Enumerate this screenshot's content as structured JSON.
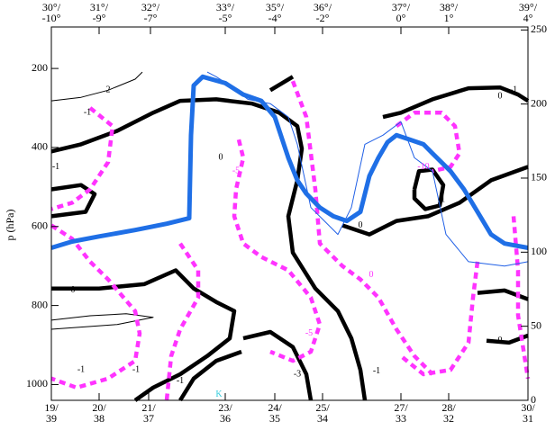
{
  "chart_data": {
    "type": "line",
    "ylabel": "p (hPa)",
    "xlim": [
      0,
      529
    ],
    "ylim": [
      1040,
      95
    ],
    "y2lim": [
      0,
      252
    ],
    "yticks": [
      200,
      400,
      600,
      800,
      1000
    ],
    "y2ticks": [
      0,
      50,
      100,
      150,
      200,
      250
    ],
    "xticks": [
      {
        "value": 0,
        "label": [
          "19/",
          "39"
        ]
      },
      {
        "value": 53,
        "label": [
          "20/",
          "38"
        ]
      },
      {
        "value": 108,
        "label": [
          "21/",
          "37"
        ]
      },
      {
        "value": 193,
        "label": [
          "23/",
          "36"
        ]
      },
      {
        "value": 248,
        "label": [
          "24/",
          "35"
        ]
      },
      {
        "value": 301,
        "label": [
          "25/",
          "34"
        ]
      },
      {
        "value": 388,
        "label": [
          "27/",
          "33"
        ]
      },
      {
        "value": 441,
        "label": [
          "28/",
          "32"
        ]
      },
      {
        "value": 529,
        "label": [
          "30/",
          "31"
        ]
      }
    ],
    "x2ticks": [
      {
        "value": 0,
        "label": [
          "30°/",
          "-10°"
        ]
      },
      {
        "value": 53,
        "label": [
          "31°/",
          "-9°"
        ]
      },
      {
        "value": 110,
        "label": [
          "32°/",
          "-7°"
        ]
      },
      {
        "value": 193,
        "label": [
          "33°/",
          "-5°"
        ]
      },
      {
        "value": 248,
        "label": [
          "35°/",
          "-4°"
        ]
      },
      {
        "value": 301,
        "label": [
          "36°/",
          "-2°"
        ]
      },
      {
        "value": 388,
        "label": [
          "37°/",
          "0°"
        ]
      },
      {
        "value": 441,
        "label": [
          "38°/",
          "1°"
        ]
      },
      {
        "value": 529,
        "label": [
          "39°/",
          "4°"
        ]
      }
    ],
    "series": [
      {
        "color": "#000000",
        "style": "thick",
        "x": [
          0,
          33,
          73,
          113,
          143,
          183,
          223,
          253,
          273,
          278,
          273,
          263,
          268,
          293,
          318,
          333,
          343,
          348
        ],
        "values": [
          410,
          392,
          358,
          312,
          282,
          278,
          289,
          312,
          346,
          403,
          483,
          574,
          666,
          757,
          814,
          883,
          963,
          1040
        ]
      },
      {
        "color": "#000000",
        "style": "thick",
        "x": [
          0,
          53,
          103,
          138,
          158,
          183,
          203,
          198,
          173,
          143,
          113,
          93
        ],
        "values": [
          757,
          757,
          746,
          711,
          757,
          791,
          814,
          883,
          928,
          974,
          1008,
          1040
        ]
      },
      {
        "color": "#000000",
        "style": "thick",
        "x": [
          368,
          388,
          423,
          463,
          498,
          518,
          529
        ],
        "values": [
          323,
          312,
          278,
          250,
          248,
          266,
          282
        ]
      },
      {
        "color": "#000000",
        "style": "thick",
        "x": [
          403,
          408,
          423,
          435,
          431,
          415,
          403,
          403
        ],
        "values": [
          506,
          460,
          456,
          495,
          547,
          556,
          529,
          506
        ]
      },
      {
        "color": "#000000",
        "style": "thick",
        "x": [
          323,
          353,
          383,
          418,
          453,
          488,
          529
        ],
        "values": [
          597,
          620,
          586,
          574,
          540,
          483,
          449
        ]
      },
      {
        "color": "#000000",
        "style": "thick",
        "x": [
          473,
          503,
          529
        ],
        "values": [
          768,
          762,
          784
        ]
      },
      {
        "color": "#000000",
        "style": "thick",
        "x": [
          483,
          508,
          529
        ],
        "values": [
          889,
          894,
          876
        ]
      },
      {
        "color": "#000000",
        "style": "thick",
        "x": [
          213,
          243,
          268,
          283,
          288
        ],
        "values": [
          883,
          867,
          905,
          974,
          1040
        ]
      },
      {
        "color": "#000000",
        "style": "thick",
        "x": [
          143,
          158,
          183,
          211
        ],
        "values": [
          1040,
          985,
          940,
          917
        ]
      },
      {
        "color": "#000000",
        "style": "thick",
        "x": [
          243,
          268
        ],
        "values": [
          255,
          221
        ]
      },
      {
        "color": "#000000",
        "style": "thick",
        "x": [
          0,
          33,
          48,
          38,
          0
        ],
        "values": [
          506,
          495,
          518,
          563,
          574
        ]
      },
      {
        "color": "#000000",
        "style": "thin",
        "x": [
          0,
          33,
          63,
          93,
          101
        ],
        "values": [
          282,
          273,
          255,
          227,
          209
        ]
      },
      {
        "color": "#000000",
        "style": "thin",
        "x": [
          0,
          43,
          83,
          113,
          73,
          0
        ],
        "values": [
          837,
          826,
          821,
          830,
          848,
          860
        ]
      },
      {
        "color": "#ff33ff",
        "style": "dashed",
        "x": [
          43,
          68,
          63,
          43,
          23,
          0
        ],
        "values": [
          300,
          346,
          437,
          506,
          540,
          556
        ]
      },
      {
        "color": "#ff33ff",
        "style": "dashed",
        "x": [
          0,
          23,
          43,
          63,
          93,
          98,
          93,
          63,
          28,
          0
        ],
        "values": [
          597,
          631,
          689,
          734,
          814,
          871,
          940,
          985,
          1008,
          985
        ]
      },
      {
        "color": "#ff33ff",
        "style": "dashed",
        "x": [
          143,
          163,
          163,
          143,
          133,
          128
        ],
        "values": [
          643,
          711,
          780,
          860,
          928,
          1040
        ]
      },
      {
        "color": "#ff33ff",
        "style": "dashed",
        "x": [
          208,
          213,
          205,
          203,
          213,
          233,
          263,
          288,
          298,
          288,
          268,
          243
        ],
        "values": [
          380,
          426,
          506,
          574,
          643,
          677,
          711,
          780,
          848,
          917,
          940,
          917
        ]
      },
      {
        "color": "#ff33ff",
        "style": "dashed",
        "x": [
          268,
          283,
          293,
          298,
          323,
          343,
          363,
          383,
          403,
          423
        ],
        "values": [
          232,
          323,
          506,
          643,
          700,
          734,
          780,
          860,
          928,
          974
        ]
      },
      {
        "color": "#ff33ff",
        "style": "dashed",
        "x": [
          383,
          403,
          433,
          448,
          453,
          443,
          423
        ],
        "values": [
          346,
          312,
          312,
          346,
          415,
          449,
          460
        ]
      },
      {
        "color": "#ff33ff",
        "style": "dashed",
        "x": [
          473,
          468,
          463,
          443,
          413,
          388
        ],
        "values": [
          689,
          780,
          894,
          963,
          974,
          928
        ]
      },
      {
        "color": "#ff33ff",
        "style": "dashed",
        "x": [
          513,
          518,
          518,
          529
        ],
        "values": [
          574,
          711,
          825,
          985
        ]
      },
      {
        "color": "#1f5fe6",
        "style": "thin-blue",
        "x": [
          173,
          183,
          198,
          218,
          243,
          263,
          273,
          288,
          303,
          318,
          333,
          348,
          368,
          388,
          403,
          423,
          438,
          463,
          503,
          529
        ],
        "values": [
          209,
          221,
          243,
          278,
          289,
          323,
          392,
          552,
          586,
          620,
          552,
          392,
          369,
          335,
          426,
          460,
          620,
          689,
          700,
          689
        ]
      },
      {
        "color": "#1f6fe6",
        "style": "thick-blue",
        "x": [
          0,
          23,
          53,
          93,
          128,
          153,
          155,
          158,
          168,
          193,
          213,
          233,
          248,
          263,
          273,
          283,
          298,
          313,
          328,
          343,
          353,
          363,
          373,
          383,
          398,
          413,
          423,
          443,
          458,
          473,
          488,
          503,
          529
        ],
        "values": [
          654,
          638,
          625,
          609,
          593,
          579,
          369,
          243,
          221,
          237,
          266,
          282,
          323,
          426,
          483,
          517,
          552,
          574,
          586,
          563,
          472,
          426,
          387,
          369,
          380,
          392,
          415,
          460,
          506,
          563,
          620,
          643,
          654
        ]
      }
    ],
    "annotations": [
      {
        "text": "2",
        "x": 63,
        "y": 255,
        "color": "#000000"
      },
      {
        "text": "-1",
        "x": 40,
        "y": 312,
        "color": "#000000"
      },
      {
        "text": "-1",
        "x": 5,
        "y": 449,
        "color": "#000000"
      },
      {
        "text": "0",
        "x": 188,
        "y": 426,
        "color": "#000000"
      },
      {
        "text": "-5",
        "x": 205,
        "y": 460,
        "color": "#ff33ff"
      },
      {
        "text": "0",
        "x": 343,
        "y": 597,
        "color": "#000000"
      },
      {
        "text": "0",
        "x": 498,
        "y": 271,
        "color": "#000000"
      },
      {
        "text": "-1",
        "x": 513,
        "y": 255,
        "color": "#000000"
      },
      {
        "text": "-1",
        "x": 433,
        "y": 533,
        "color": "#000000"
      },
      {
        "text": "-10",
        "x": 413,
        "y": 449,
        "color": "#ff33ff"
      },
      {
        "text": "0",
        "x": 24,
        "y": 762,
        "color": "#000000"
      },
      {
        "text": "-1",
        "x": 94,
        "y": 963,
        "color": "#000000"
      },
      {
        "text": "-1",
        "x": 143,
        "y": 992,
        "color": "#000000"
      },
      {
        "text": "-3",
        "x": 273,
        "y": 974,
        "color": "#000000"
      },
      {
        "text": "0",
        "x": 355,
        "y": 723,
        "color": "#ff33ff"
      },
      {
        "text": "-5",
        "x": 286,
        "y": 871,
        "color": "#ff33ff"
      },
      {
        "text": "0",
        "x": 498,
        "y": 889,
        "color": "#000000"
      },
      {
        "text": "-1",
        "x": 33,
        "y": 963,
        "color": "#000000"
      },
      {
        "text": "-1",
        "x": 361,
        "y": 967,
        "color": "#000000"
      },
      {
        "text": "K",
        "x": 186,
        "y": 1026,
        "color": "#33ccdd"
      }
    ]
  }
}
